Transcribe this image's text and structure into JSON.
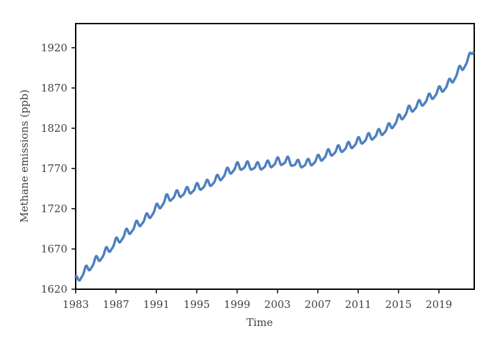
{
  "chart_data": {
    "type": "line",
    "title": "",
    "xlabel": "Time",
    "ylabel": "Methane emissions (ppb)",
    "xlim": [
      1983,
      2022.5
    ],
    "ylim": [
      1620,
      1950
    ],
    "x_ticks": [
      "1983",
      "1987",
      "1991",
      "1995",
      "1999",
      "2003",
      "2007",
      "2011",
      "2015",
      "2019"
    ],
    "y_ticks": [
      "1620",
      "1670",
      "1720",
      "1770",
      "1820",
      "1870",
      "1920"
    ],
    "grid": false,
    "legend": "none",
    "line_color": "#4f7fbf",
    "seasonal_amplitude_ppb": 4.5,
    "series": [
      {
        "x": [
          1983.0,
          1984.0,
          1985.0,
          1986.0,
          1987.0,
          1988.0,
          1989.0,
          1990.0,
          1991.0,
          1992.0,
          1993.0,
          1994.0,
          1995.0,
          1996.0,
          1997.0,
          1998.0,
          1999.0,
          2000.0,
          2001.0,
          2002.0,
          2003.0,
          2004.0,
          2005.0,
          2006.0,
          2007.0,
          2008.0,
          2009.0,
          2010.0,
          2011.0,
          2012.0,
          2013.0,
          2014.0,
          2015.0,
          2016.0,
          2017.0,
          2018.0,
          2019.0,
          2020.0,
          2021.0,
          2022.0,
          2022.4
        ],
        "values": [
          1630,
          1643,
          1655,
          1666,
          1678,
          1689,
          1699,
          1708,
          1720,
          1732,
          1737,
          1741,
          1746,
          1750,
          1756,
          1765,
          1772,
          1773,
          1772,
          1774,
          1778,
          1779,
          1775,
          1776,
          1781,
          1788,
          1793,
          1797,
          1803,
          1808,
          1813,
          1820,
          1831,
          1842,
          1849,
          1857,
          1866,
          1875,
          1891,
          1906,
          1918
        ]
      }
    ]
  }
}
